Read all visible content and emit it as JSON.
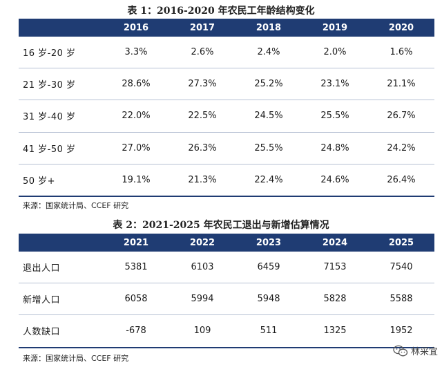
{
  "table1": {
    "title": "表 1：2016-2020 年农民工年龄结构变化",
    "headers": [
      "",
      "2016",
      "2017",
      "2018",
      "2019",
      "2020"
    ],
    "rows": [
      {
        "label": "16 岁-20 岁",
        "values": [
          "3.3%",
          "2.6%",
          "2.4%",
          "2.0%",
          "1.6%"
        ]
      },
      {
        "label": "21 岁-30 岁",
        "values": [
          "28.6%",
          "27.3%",
          "25.2%",
          "23.1%",
          "21.1%"
        ]
      },
      {
        "label": "31 岁-40 岁",
        "values": [
          "22.0%",
          "22.5%",
          "24.5%",
          "25.5%",
          "26.7%"
        ]
      },
      {
        "label": "41 岁-50 岁",
        "values": [
          "27.0%",
          "26.3%",
          "25.5%",
          "24.8%",
          "24.2%"
        ]
      },
      {
        "label": "50 岁+",
        "values": [
          "19.1%",
          "21.3%",
          "22.4%",
          "24.6%",
          "26.4%"
        ]
      }
    ],
    "source": "来源：国家统计局、CCEF 研究"
  },
  "table2": {
    "title": "表 2：2021-2025 年农民工退出与新增估算情况",
    "headers": [
      "",
      "2021",
      "2022",
      "2023",
      "2024",
      "2025"
    ],
    "rows": [
      {
        "label": "退出人口",
        "values": [
          "5381",
          "6103",
          "6459",
          "7153",
          "7540"
        ]
      },
      {
        "label": "新增人口",
        "values": [
          "6058",
          "5994",
          "5948",
          "5828",
          "5588"
        ]
      },
      {
        "label": "人数缺口",
        "values": [
          "-678",
          "109",
          "511",
          "1325",
          "1952"
        ]
      }
    ],
    "source": "来源：国家统计局、CCEF 研究"
  },
  "watermark": {
    "text": "林采宜",
    "icon": "wechat-icon"
  },
  "colors": {
    "header_bg": "#1f3c73",
    "header_text": "#ffffff",
    "rule": "#b5c0d3"
  }
}
